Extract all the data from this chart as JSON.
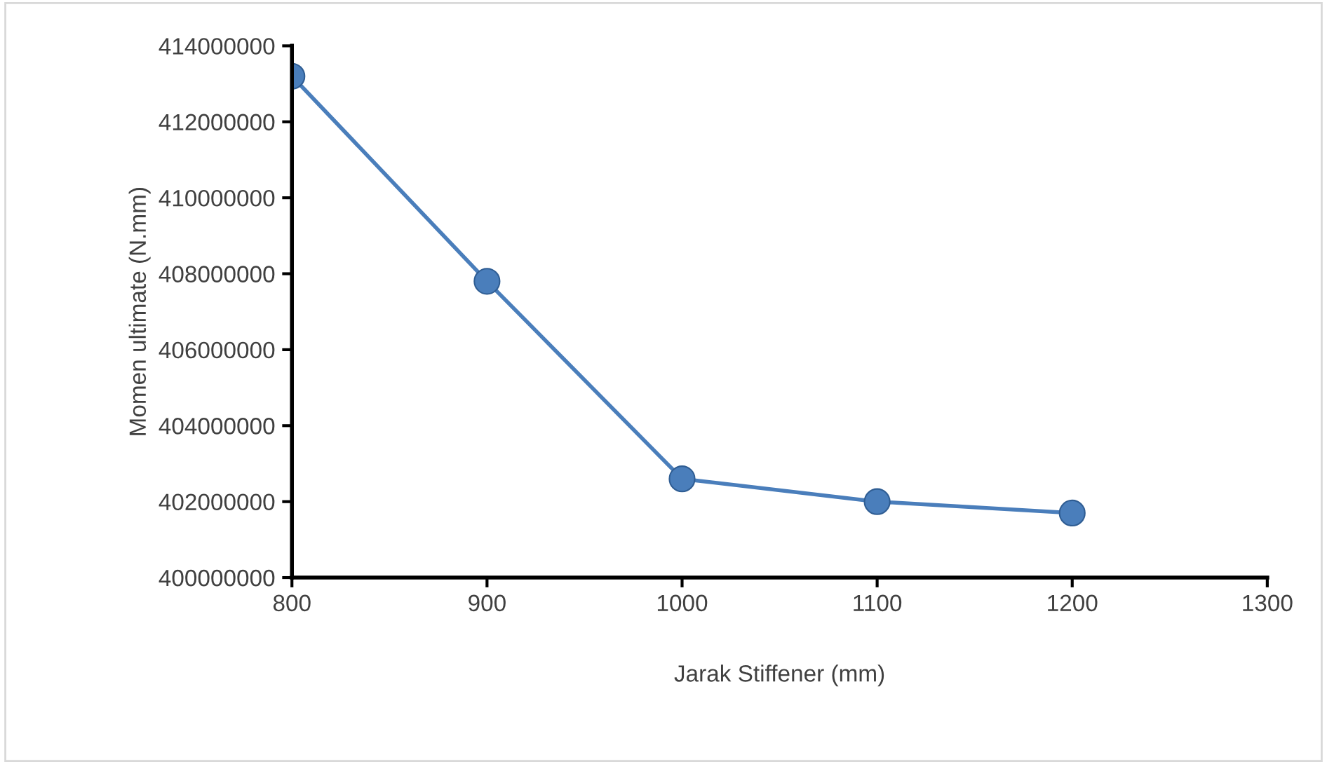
{
  "chart_data": {
    "type": "line",
    "xlabel": "Jarak Stiffener (mm)",
    "ylabel": "Momen ultimate (N.mm)",
    "x": [
      800,
      900,
      1000,
      1100,
      1200
    ],
    "series": [
      {
        "color": "#4a7ebb",
        "values": [
          413200000,
          407800000,
          402600000,
          402000000,
          401700000
        ]
      }
    ],
    "xlim": [
      800,
      1300
    ],
    "xticks": [
      800,
      900,
      1000,
      1100,
      1200,
      1300
    ],
    "ylim": [
      400000000,
      414000000
    ],
    "yticks": [
      400000000,
      402000000,
      404000000,
      406000000,
      408000000,
      410000000,
      412000000,
      414000000
    ],
    "grid": false,
    "legend": false,
    "marker": "circle",
    "line_style": "solid"
  }
}
